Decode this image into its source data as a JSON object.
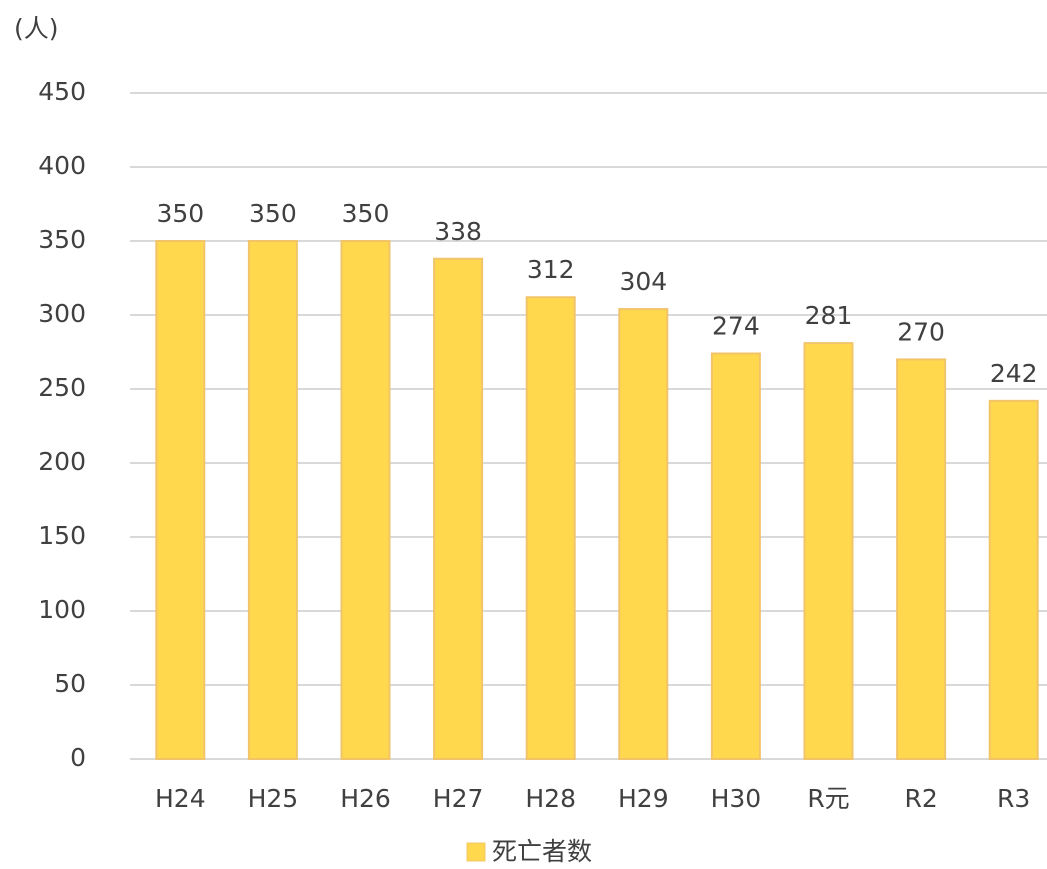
{
  "chart_data": {
    "type": "bar",
    "y_label": "(人)",
    "categories": [
      "H24",
      "H25",
      "H26",
      "H27",
      "H28",
      "H29",
      "H30",
      "R元",
      "R2",
      "R3"
    ],
    "series": [
      {
        "name": "死亡者数",
        "color": "#ffd84d",
        "values": [
          350,
          350,
          350,
          338,
          312,
          304,
          274,
          281,
          270,
          242
        ]
      }
    ],
    "ylim": [
      0,
      450
    ],
    "yticks": [
      0,
      50,
      100,
      150,
      200,
      250,
      300,
      350,
      400,
      450
    ],
    "grid": true,
    "legend": "bottom"
  }
}
